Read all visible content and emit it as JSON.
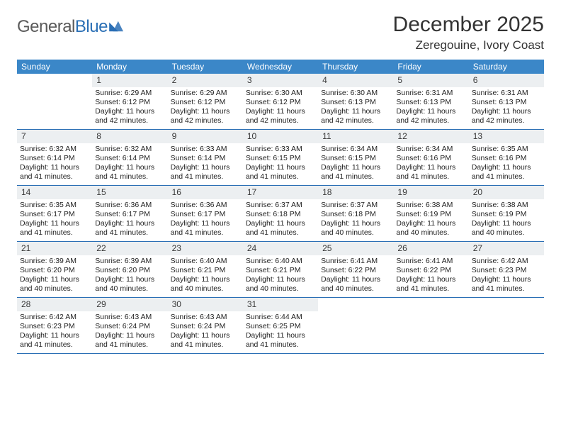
{
  "brand": {
    "part1": "General",
    "part2": "Blue"
  },
  "title": "December 2025",
  "location": "Zeregouine, Ivory Coast",
  "colors": {
    "header_bg": "#3b87c8",
    "week_divider": "#2a6fb5",
    "daynum_bg": "#eceff1",
    "text": "#222222",
    "title": "#333333"
  },
  "day_names": [
    "Sunday",
    "Monday",
    "Tuesday",
    "Wednesday",
    "Thursday",
    "Friday",
    "Saturday"
  ],
  "leading_blanks": 1,
  "days": [
    {
      "n": 1,
      "sunrise": "6:29 AM",
      "sunset": "6:12 PM",
      "daylight": "11 hours and 42 minutes."
    },
    {
      "n": 2,
      "sunrise": "6:29 AM",
      "sunset": "6:12 PM",
      "daylight": "11 hours and 42 minutes."
    },
    {
      "n": 3,
      "sunrise": "6:30 AM",
      "sunset": "6:12 PM",
      "daylight": "11 hours and 42 minutes."
    },
    {
      "n": 4,
      "sunrise": "6:30 AM",
      "sunset": "6:13 PM",
      "daylight": "11 hours and 42 minutes."
    },
    {
      "n": 5,
      "sunrise": "6:31 AM",
      "sunset": "6:13 PM",
      "daylight": "11 hours and 42 minutes."
    },
    {
      "n": 6,
      "sunrise": "6:31 AM",
      "sunset": "6:13 PM",
      "daylight": "11 hours and 42 minutes."
    },
    {
      "n": 7,
      "sunrise": "6:32 AM",
      "sunset": "6:14 PM",
      "daylight": "11 hours and 41 minutes."
    },
    {
      "n": 8,
      "sunrise": "6:32 AM",
      "sunset": "6:14 PM",
      "daylight": "11 hours and 41 minutes."
    },
    {
      "n": 9,
      "sunrise": "6:33 AM",
      "sunset": "6:14 PM",
      "daylight": "11 hours and 41 minutes."
    },
    {
      "n": 10,
      "sunrise": "6:33 AM",
      "sunset": "6:15 PM",
      "daylight": "11 hours and 41 minutes."
    },
    {
      "n": 11,
      "sunrise": "6:34 AM",
      "sunset": "6:15 PM",
      "daylight": "11 hours and 41 minutes."
    },
    {
      "n": 12,
      "sunrise": "6:34 AM",
      "sunset": "6:16 PM",
      "daylight": "11 hours and 41 minutes."
    },
    {
      "n": 13,
      "sunrise": "6:35 AM",
      "sunset": "6:16 PM",
      "daylight": "11 hours and 41 minutes."
    },
    {
      "n": 14,
      "sunrise": "6:35 AM",
      "sunset": "6:17 PM",
      "daylight": "11 hours and 41 minutes."
    },
    {
      "n": 15,
      "sunrise": "6:36 AM",
      "sunset": "6:17 PM",
      "daylight": "11 hours and 41 minutes."
    },
    {
      "n": 16,
      "sunrise": "6:36 AM",
      "sunset": "6:17 PM",
      "daylight": "11 hours and 41 minutes."
    },
    {
      "n": 17,
      "sunrise": "6:37 AM",
      "sunset": "6:18 PM",
      "daylight": "11 hours and 41 minutes."
    },
    {
      "n": 18,
      "sunrise": "6:37 AM",
      "sunset": "6:18 PM",
      "daylight": "11 hours and 40 minutes."
    },
    {
      "n": 19,
      "sunrise": "6:38 AM",
      "sunset": "6:19 PM",
      "daylight": "11 hours and 40 minutes."
    },
    {
      "n": 20,
      "sunrise": "6:38 AM",
      "sunset": "6:19 PM",
      "daylight": "11 hours and 40 minutes."
    },
    {
      "n": 21,
      "sunrise": "6:39 AM",
      "sunset": "6:20 PM",
      "daylight": "11 hours and 40 minutes."
    },
    {
      "n": 22,
      "sunrise": "6:39 AM",
      "sunset": "6:20 PM",
      "daylight": "11 hours and 40 minutes."
    },
    {
      "n": 23,
      "sunrise": "6:40 AM",
      "sunset": "6:21 PM",
      "daylight": "11 hours and 40 minutes."
    },
    {
      "n": 24,
      "sunrise": "6:40 AM",
      "sunset": "6:21 PM",
      "daylight": "11 hours and 40 minutes."
    },
    {
      "n": 25,
      "sunrise": "6:41 AM",
      "sunset": "6:22 PM",
      "daylight": "11 hours and 40 minutes."
    },
    {
      "n": 26,
      "sunrise": "6:41 AM",
      "sunset": "6:22 PM",
      "daylight": "11 hours and 41 minutes."
    },
    {
      "n": 27,
      "sunrise": "6:42 AM",
      "sunset": "6:23 PM",
      "daylight": "11 hours and 41 minutes."
    },
    {
      "n": 28,
      "sunrise": "6:42 AM",
      "sunset": "6:23 PM",
      "daylight": "11 hours and 41 minutes."
    },
    {
      "n": 29,
      "sunrise": "6:43 AM",
      "sunset": "6:24 PM",
      "daylight": "11 hours and 41 minutes."
    },
    {
      "n": 30,
      "sunrise": "6:43 AM",
      "sunset": "6:24 PM",
      "daylight": "11 hours and 41 minutes."
    },
    {
      "n": 31,
      "sunrise": "6:44 AM",
      "sunset": "6:25 PM",
      "daylight": "11 hours and 41 minutes."
    }
  ],
  "labels": {
    "sunrise": "Sunrise:",
    "sunset": "Sunset:",
    "daylight": "Daylight:"
  }
}
